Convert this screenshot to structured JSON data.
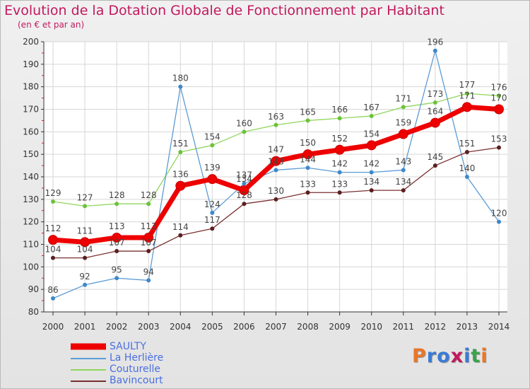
{
  "header": {
    "title": "Evolution de la Dotation Globale de Fonctionnement par Habitant",
    "subtitle": "(en € et par an)"
  },
  "brand": {
    "name": "Proxiti",
    "letters": [
      "P",
      "r",
      "o",
      "x",
      "i",
      "t",
      "i"
    ]
  },
  "colors": {
    "title": "#c2195e",
    "axis": "#333333",
    "grid": "#d6d6d6",
    "legend_text": "#4a6fe0",
    "logo": [
      "#e8772a",
      "#3a7bd5",
      "#3a7bd5",
      "#c2195e",
      "#3a7bd5",
      "#3aa34c",
      "#e8772a"
    ]
  },
  "chart_data": {
    "type": "line",
    "title": "Evolution de la Dotation Globale de Fonctionnement par Habitant",
    "subtitle": "(en € et par an)",
    "xlabel": "",
    "ylabel": "",
    "ylim": [
      80,
      200
    ],
    "yticks": [
      80,
      90,
      100,
      110,
      120,
      130,
      140,
      150,
      160,
      170,
      180,
      190,
      200
    ],
    "grid": true,
    "legend_position": "bottom-left",
    "categories": [
      "2000",
      "2001",
      "2002",
      "2003",
      "2004",
      "2005",
      "2006",
      "2007",
      "2008",
      "2009",
      "2010",
      "2011",
      "2012",
      "2013",
      "2014"
    ],
    "series": [
      {
        "name": "Couturelle",
        "color": "#8fd65c",
        "marker": "#6cc23a",
        "width": 1.3,
        "values": [
          129,
          127,
          128,
          128,
          151,
          154,
          160,
          163,
          165,
          166,
          167,
          171,
          173,
          177,
          176
        ]
      },
      {
        "name": "La Herlière",
        "color": "#5b9bd5",
        "marker": "#3f88c9",
        "width": 1.3,
        "values": [
          86,
          92,
          95,
          94,
          180,
          124,
          137,
          143,
          144,
          142,
          142,
          143,
          196,
          140,
          120
        ]
      },
      {
        "name": "Bavincourt",
        "color": "#7a3030",
        "marker": "#5c1f1f",
        "width": 1.3,
        "values": [
          104,
          104,
          107,
          107,
          114,
          117,
          128,
          130,
          133,
          133,
          134,
          134,
          145,
          151,
          153
        ]
      },
      {
        "name": "SAULTY",
        "color": "#ee0000",
        "marker": "#ee0000",
        "width": 7,
        "values": [
          112,
          111,
          113,
          113,
          136,
          139,
          134,
          147,
          150,
          152,
          154,
          159,
          164,
          171,
          170
        ]
      }
    ],
    "legend_order": [
      "SAULTY",
      "La Herlière",
      "Couturelle",
      "Bavincourt"
    ]
  }
}
